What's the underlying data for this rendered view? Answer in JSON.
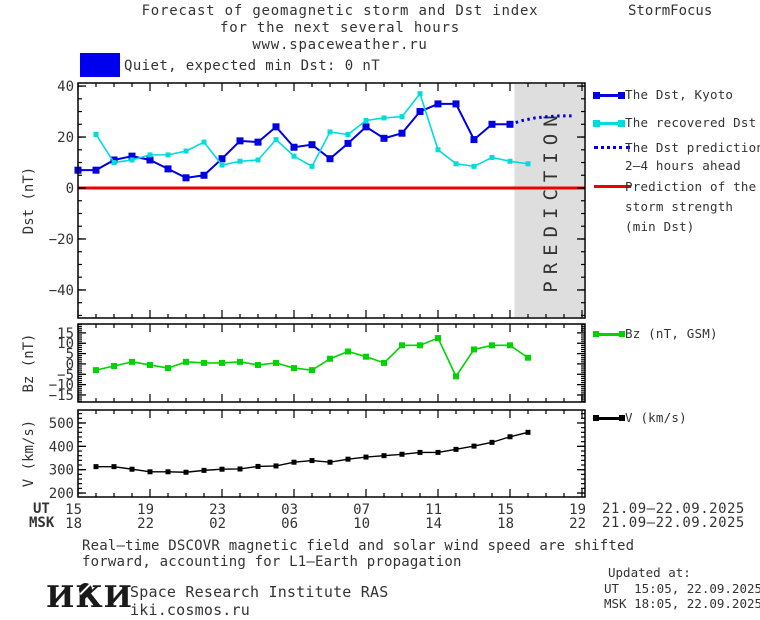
{
  "header": {
    "title_line1": "Forecast of geomagnetic storm and Dst index",
    "title_line2": "for the next several hours",
    "title_line3": "www.spaceweather.ru",
    "brand": "StormFocus"
  },
  "status_banner": {
    "swatch_color": "#0000ee",
    "label": "Quiet, expected min Dst: 0 nT"
  },
  "legend": {
    "dst": [
      {
        "label": "The Dst, Kyoto",
        "color": "#0000e0",
        "style": "solid-squares"
      },
      {
        "label": "The recovered Dst",
        "color": "#00dcdc",
        "style": "solid-squares"
      },
      {
        "label_line1": "The Dst prediction",
        "label_line2": "2—4 hours ahead",
        "color": "#0000e0",
        "style": "dotted"
      },
      {
        "label_line1": "Prediction of the",
        "label_line2": "storm strength",
        "label_line3": "(min Dst)",
        "color": "#ee0000",
        "style": "solid"
      }
    ],
    "bz": {
      "label": "Bz (nT, GSM)",
      "color": "#00d400"
    },
    "v": {
      "label": "V (km/s)",
      "color": "#000000"
    }
  },
  "chart_data": {
    "type": "line",
    "x_axis": {
      "xlim_hours": [
        15,
        43.2
      ],
      "major_tick_hours": [
        15,
        19,
        23,
        27,
        31,
        35,
        39,
        43
      ],
      "minor_tick_every_hours": 1,
      "ut_row_label": "UT",
      "msk_row_label": "MSK",
      "ut_tick_labels": [
        "15",
        "19",
        "23",
        "03",
        "07",
        "11",
        "15",
        "19"
      ],
      "msk_tick_labels": [
        "18",
        "22",
        "02",
        "06",
        "10",
        "14",
        "18",
        "22"
      ],
      "ut_date_range": "21.09—22.09.2025",
      "msk_date_range": "21.09—22.09.2025"
    },
    "panels": [
      {
        "id": "dst",
        "ylabel": "Dst (nT)",
        "ylim": [
          -51,
          41.2
        ],
        "ytick_major": [
          {
            "v": 40,
            "label": "40"
          },
          {
            "v": 20,
            "label": "20"
          },
          {
            "v": 0,
            "label": "0"
          },
          {
            "v": -20,
            "label": "−20"
          },
          {
            "v": -40,
            "label": "−40"
          }
        ],
        "ytick_minor_step": 5,
        "zero_line": {
          "value": 0,
          "color": "#ee0000"
        },
        "prediction_band": {
          "start_hour": 39.25,
          "fill": "#dedede",
          "text": "PREDICTION",
          "text_color": "#c6c6c6"
        },
        "series": [
          {
            "name": "The Dst, Kyoto",
            "color": "#0000e0",
            "width": 2,
            "marker": 7,
            "x": [
              15,
              16,
              17,
              18,
              19,
              20,
              21,
              22,
              23,
              24,
              25,
              26,
              27,
              28,
              29,
              30,
              31,
              32,
              33,
              34,
              35,
              36,
              37,
              38,
              39
            ],
            "values": [
              7,
              7,
              11,
              12.5,
              11,
              7.5,
              4,
              5,
              11.5,
              18.5,
              18,
              24,
              16,
              17,
              11.5,
              17.5,
              24,
              19.5,
              21.5,
              30,
              33,
              33,
              19,
              25,
              25
            ]
          },
          {
            "name": "The recovered Dst",
            "color": "#00dcdc",
            "width": 1.6,
            "marker": 5,
            "x": [
              16,
              17,
              18,
              19,
              20,
              21,
              22,
              23,
              24,
              25,
              26,
              27,
              28,
              29,
              30,
              31,
              32,
              33,
              34,
              35,
              36,
              37,
              38,
              39,
              40
            ],
            "values": [
              21,
              10,
              11,
              13,
              13,
              14.5,
              18,
              9,
              10.5,
              11,
              19,
              12.5,
              8.5,
              22,
              21,
              26.5,
              27.5,
              28,
              37,
              15,
              9.5,
              8.5,
              12,
              10.5,
              9.5
            ]
          },
          {
            "name": "The Dst prediction 2—4 hours ahead",
            "color": "#0000e0",
            "width": 3,
            "style": "dotted",
            "marker": 0,
            "x": [
              39,
              39.7,
              40.4,
              41.1,
              41.8,
              42.5
            ],
            "values": [
              25,
              26.5,
              27.5,
              28,
              28.3,
              28.3
            ]
          }
        ]
      },
      {
        "id": "bz",
        "ylabel": "Bz (nT)",
        "ylim": [
          -18.4,
          19.3
        ],
        "ytick_major": [
          {
            "v": 15,
            "label": "15"
          },
          {
            "v": 10,
            "label": "10"
          },
          {
            "v": 5,
            "label": "5"
          },
          {
            "v": 0,
            "label": "0"
          },
          {
            "v": -5,
            "label": "−5"
          },
          {
            "v": -10,
            "label": "−10"
          },
          {
            "v": -15,
            "label": "−15"
          }
        ],
        "ytick_minor_step": 1,
        "series": [
          {
            "name": "Bz (nT, GSM)",
            "color": "#00d400",
            "width": 1.6,
            "marker": 6,
            "x": [
              16,
              17,
              18,
              19,
              20,
              21,
              22,
              23,
              24,
              25,
              26,
              27,
              28,
              29,
              30,
              31,
              32,
              33,
              34,
              35,
              36,
              37,
              38,
              39,
              40
            ],
            "values": [
              -3,
              -1,
              1,
              -0.5,
              -2,
              1,
              0.5,
              0.5,
              1,
              -0.5,
              0.5,
              -2,
              -3,
              2.5,
              6,
              3.5,
              0.5,
              9,
              9,
              12.5,
              -6,
              7,
              9,
              9,
              3
            ]
          }
        ]
      },
      {
        "id": "v",
        "ylabel": "V (km/s)",
        "ylim": [
          183,
          555.6
        ],
        "ytick_major": [
          {
            "v": 500,
            "label": "500"
          },
          {
            "v": 400,
            "label": "400"
          },
          {
            "v": 300,
            "label": "300"
          },
          {
            "v": 200,
            "label": "200"
          }
        ],
        "ytick_minor_step": 20,
        "series": [
          {
            "name": "V (km/s)",
            "color": "#000000",
            "width": 1.4,
            "marker": 5,
            "x": [
              16,
              17,
              18,
              19,
              20,
              21,
              22,
              23,
              24,
              25,
              26,
              27,
              28,
              29,
              30,
              31,
              32,
              33,
              34,
              35,
              36,
              37,
              38,
              39,
              40
            ],
            "values": [
              313,
              313,
              302,
              291,
              291,
              289,
              297,
              302,
              303,
              314,
              316,
              332,
              339,
              332,
              345,
              354,
              360,
              366,
              374,
              374,
              387,
              401,
              417,
              441,
              460
            ]
          }
        ]
      }
    ]
  },
  "footer": {
    "note_line1": "Real—time DSCOVR magnetic field and solar wind speed are shifted",
    "note_line2": "forward, accounting for L1—Earth propagation",
    "updated_title": "Updated at:",
    "updated_ut": "UT  15:05, 22.09.2025",
    "updated_msk": "MSK 18:05, 22.09.2025",
    "logo_text": "ИКИ",
    "institute": "Space Research Institute RAS",
    "website": "iki.cosmos.ru"
  }
}
